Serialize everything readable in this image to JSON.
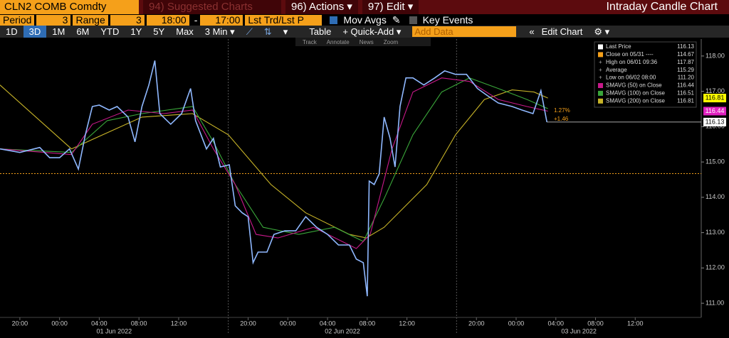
{
  "header": {
    "security": "CLN2 COMB Comdty",
    "menus": [
      "94) Suggested Charts",
      "96) Actions ▾",
      "97) Edit ▾"
    ],
    "title": "Intraday Candle Chart"
  },
  "settings": {
    "period_label": "Period",
    "period": 3,
    "range_label": "Range",
    "range": 3,
    "start": "18:00",
    "separator": "-",
    "end": "17:00",
    "field": "Lst Trd/Lst P",
    "mov_avgs": "Mov Avgs",
    "key_events": "Key Events"
  },
  "buttons": {
    "ranges": [
      "1D",
      "3D",
      "1M",
      "6M",
      "YTD",
      "1Y",
      "5Y",
      "Max",
      "3 Min ▾"
    ],
    "selected": 1,
    "tools": [
      "Table",
      "+ Quick-Add ▾",
      "Add Data",
      "Edit Chart"
    ],
    "subtools": [
      "Track",
      "Annotate",
      "News",
      "Zoom"
    ]
  },
  "chart_data": {
    "type": "line",
    "xlim": [
      0,
      70.65
    ],
    "ylim": [
      110.64,
      118.48
    ],
    "xticks": [
      {
        "value": 2,
        "label": "20:00"
      },
      {
        "value": 6,
        "label": "00:00"
      },
      {
        "value": 10,
        "label": "04:00"
      },
      {
        "value": 14,
        "label": "08:00"
      },
      {
        "value": 18,
        "label": "12:00"
      },
      {
        "value": 25,
        "label": "20:00"
      },
      {
        "value": 29,
        "label": "00:00"
      },
      {
        "value": 33,
        "label": "04:00"
      },
      {
        "value": 37,
        "label": "08:00"
      },
      {
        "value": 41,
        "label": "12:00"
      },
      {
        "value": 48,
        "label": "20:00"
      },
      {
        "value": 52,
        "label": "00:00"
      },
      {
        "value": 56,
        "label": "04:00"
      },
      {
        "value": 60,
        "label": "08:00"
      },
      {
        "value": 64,
        "label": "12:00"
      }
    ],
    "session_breaks": [
      23,
      46
    ],
    "sessions": [
      "01 Jun 2022",
      "02 Jun 2022",
      "03 Jun 2022"
    ],
    "yticks": [
      {
        "value": 111,
        "label": "111.00"
      },
      {
        "value": 112,
        "label": "112.00"
      },
      {
        "value": 113,
        "label": "113.00"
      },
      {
        "value": 114,
        "label": "114.00"
      },
      {
        "value": 115,
        "label": "115.00"
      },
      {
        "value": 116,
        "label": "116.00"
      },
      {
        "value": 117,
        "label": "117.00"
      },
      {
        "value": 118,
        "label": "118.00"
      }
    ],
    "grid": false,
    "series": [
      {
        "name": "Last Price",
        "color": "#8fb8ff",
        "x": [
          0,
          2,
          4,
          5,
          6,
          7,
          7.9,
          8.6,
          9.3,
          10,
          11,
          11.8,
          12.9,
          13.6,
          14.3,
          15,
          15.6,
          16.1,
          17.2,
          18.3,
          19.2,
          19.7,
          20.8,
          21.5,
          22.2,
          23.1,
          23.7,
          24.4,
          25,
          25.5,
          26,
          26.9,
          27.6,
          28.7,
          29.8,
          30.8,
          31.9,
          33,
          34.1,
          35.2,
          35.9,
          36.6,
          37,
          37.2,
          37.7,
          38.2,
          38.7,
          39.3,
          39.8,
          40.3,
          40.9,
          41.6,
          42.7,
          43.8,
          44.8,
          45.9,
          47,
          48.1,
          49.1,
          50.2,
          51.6,
          52.6,
          53.7,
          54.5,
          55.1
        ],
        "values": [
          115.37,
          115.27,
          115.41,
          115.12,
          115.12,
          115.37,
          114.8,
          115.77,
          116.57,
          116.61,
          116.47,
          116.57,
          116.27,
          115.57,
          116.57,
          117.18,
          117.87,
          116.37,
          116.07,
          116.37,
          117.08,
          116.17,
          115.37,
          115.67,
          114.86,
          114.92,
          113.76,
          113.56,
          113.45,
          112.15,
          112.45,
          112.45,
          112.95,
          113.05,
          113.05,
          113.45,
          113.15,
          112.95,
          112.65,
          112.65,
          112.25,
          112.15,
          111.2,
          114.46,
          114.36,
          114.66,
          116.27,
          115.67,
          114.86,
          116.57,
          117.38,
          117.38,
          117.18,
          117.38,
          117.58,
          117.48,
          117.48,
          117.08,
          116.88,
          116.67,
          116.57,
          116.47,
          116.37,
          117.02,
          116.13
        ]
      },
      {
        "name": "SMAVG (50)  on Close",
        "color": "#c8198a",
        "x": [
          0,
          7.2,
          9.3,
          12.9,
          16.5,
          19.4,
          21.5,
          23.7,
          25.8,
          28,
          31.6,
          35.9,
          37.3,
          39.5,
          41.6,
          44.5,
          47.3,
          50.2,
          53.1,
          55.2
        ],
        "values": [
          115.37,
          115.21,
          116.07,
          116.47,
          116.37,
          116.47,
          115.37,
          114.36,
          112.95,
          112.85,
          113.15,
          112.55,
          112.95,
          115.37,
          116.98,
          117.38,
          117.28,
          116.77,
          116.57,
          116.44
        ]
      },
      {
        "name": "SMAVG (100)  on Close",
        "color": "#3aa63a",
        "x": [
          0,
          7.2,
          10.8,
          14.3,
          19.4,
          21.5,
          23.7,
          26.5,
          30.1,
          33.7,
          36.6,
          38.7,
          41.6,
          44.5,
          47.3,
          50.2,
          53.1,
          55.2
        ],
        "values": [
          115.37,
          115.27,
          116.17,
          116.37,
          116.57,
          115.57,
          114.36,
          113.15,
          112.95,
          113.15,
          112.75,
          113.96,
          115.77,
          116.98,
          117.38,
          117.08,
          116.77,
          116.51
        ]
      },
      {
        "name": "SMAVG (200)  on Close",
        "color": "#c8b428",
        "x": [
          0,
          7.2,
          14.3,
          19.4,
          23,
          27.3,
          30.8,
          35.2,
          36.9,
          38.7,
          43,
          45.9,
          48.8,
          51.6,
          53.8,
          55.2
        ],
        "values": [
          117.18,
          115.37,
          116.27,
          116.37,
          115.77,
          114.36,
          113.56,
          112.95,
          112.85,
          113.15,
          114.36,
          115.77,
          116.77,
          117.04,
          116.98,
          116.81
        ]
      }
    ],
    "stats": [
      {
        "label": "Close on 05/31 ----",
        "value": 114.67,
        "color": "#f5a01a"
      },
      {
        "label": "High on 06/01 09:36",
        "value": 117.87
      },
      {
        "label": "Average",
        "value": 115.29
      },
      {
        "label": "Low on 06/02 08:00",
        "value": 111.2,
        "value_label": "111.20"
      }
    ],
    "annotations": [
      "1.27%",
      "+1.46"
    ]
  }
}
